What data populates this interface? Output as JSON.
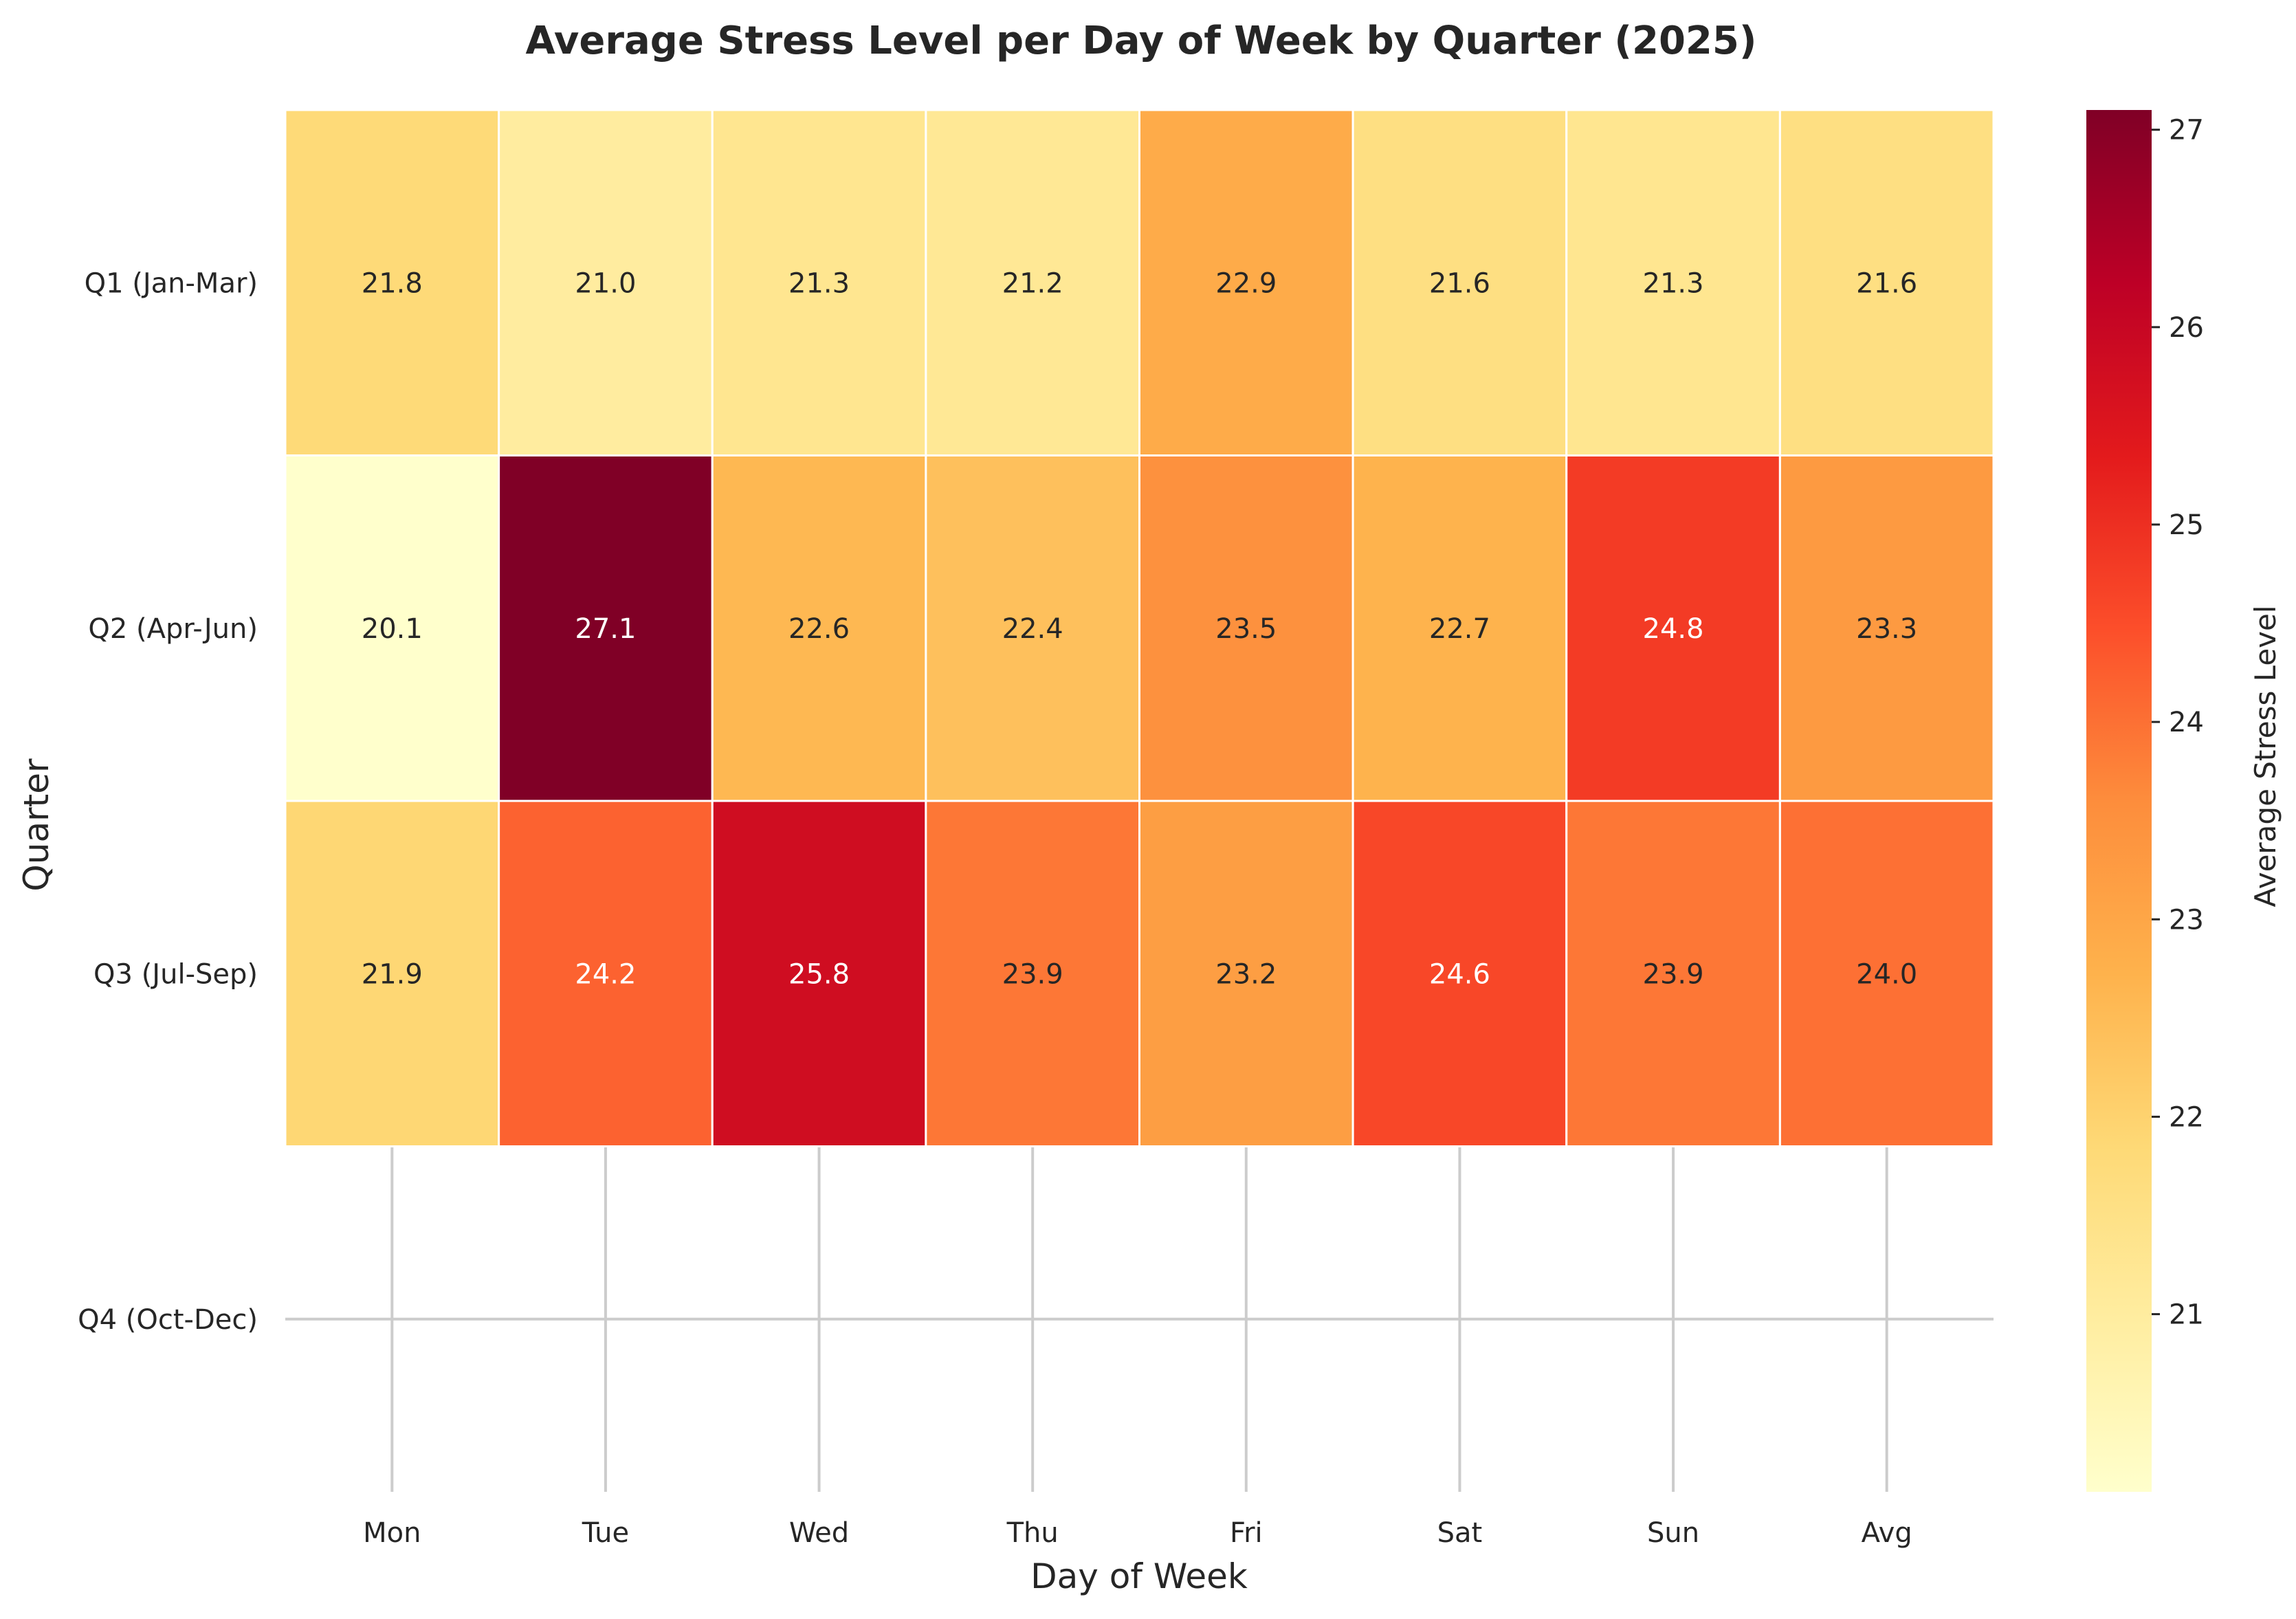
{
  "chart_data": {
    "type": "heatmap",
    "title": "Average Stress Level per Day of Week by Quarter (2025)",
    "xlabel": "Day of Week",
    "ylabel": "Quarter",
    "x_categories": [
      "Mon",
      "Tue",
      "Wed",
      "Thu",
      "Fri",
      "Sat",
      "Sun",
      "Avg"
    ],
    "y_categories": [
      "Q1 (Jan-Mar)",
      "Q2 (Apr-Jun)",
      "Q3 (Jul-Sep)",
      "Q4 (Oct-Dec)"
    ],
    "values": [
      [
        21.8,
        21.0,
        21.3,
        21.2,
        22.9,
        21.6,
        21.3,
        21.6
      ],
      [
        20.1,
        27.1,
        22.6,
        22.4,
        23.5,
        22.7,
        24.8,
        23.3
      ],
      [
        21.9,
        24.2,
        25.8,
        23.9,
        23.2,
        24.6,
        23.9,
        24.0
      ],
      [
        null,
        null,
        null,
        null,
        null,
        null,
        null,
        null
      ]
    ],
    "colorbar": {
      "label": "Average Stress Level",
      "min": 20.1,
      "max": 27.1,
      "ticks": [
        21,
        22,
        23,
        24,
        25,
        26,
        27
      ],
      "colormap": "YlOrRd"
    },
    "grid": true,
    "colors": {
      "grid": "#cccccc",
      "text_dark": "#262626",
      "text_light": "#ffffff",
      "cell_border": "#ffffff"
    }
  }
}
